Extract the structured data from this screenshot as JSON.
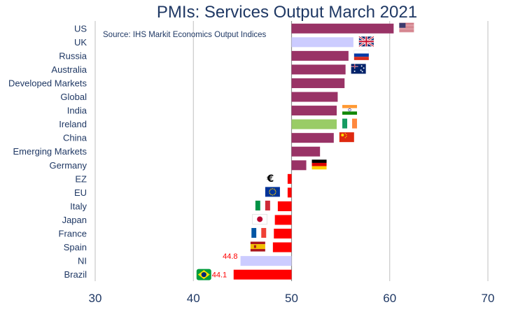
{
  "chart_data": {
    "type": "bar",
    "orientation": "horizontal",
    "title": "PMIs: Services Output March 2021",
    "source": "Source: IHS Markit Economics Output Indices",
    "xlabel": "",
    "ylabel": "",
    "xlim": [
      30,
      70
    ],
    "xticks": [
      "30",
      "40",
      "50",
      "60",
      "70"
    ],
    "baseline": 50,
    "grid": true,
    "legend": "none",
    "colors": {
      "default": "#993366",
      "uk_ni": "#ccccff",
      "ireland": "#99cc66",
      "below50": "#ff0000",
      "data_label": "#ff0000",
      "title": "#1f3864",
      "axis_text": "#1f3864",
      "grid": "#bfbfbf"
    },
    "categories": [
      "US",
      "UK",
      "Russia",
      "Australia",
      "Developed Markets",
      "Global",
      "India",
      "Ireland",
      "China",
      "Emerging Markets",
      "Germany",
      "EZ",
      "EU",
      "Italy",
      "Japan",
      "France",
      "Spain",
      "NI",
      "Brazil"
    ],
    "values": [
      60.4,
      56.3,
      55.8,
      55.5,
      55.4,
      54.7,
      54.6,
      54.6,
      54.3,
      52.9,
      51.5,
      49.6,
      49.6,
      48.6,
      48.3,
      48.2,
      48.1,
      44.8,
      44.1
    ],
    "bar_colors": [
      "#993366",
      "#ccccff",
      "#993366",
      "#993366",
      "#993366",
      "#993366",
      "#993366",
      "#99cc66",
      "#993366",
      "#993366",
      "#993366",
      "#ff0000",
      "#ff0000",
      "#ff0000",
      "#ff0000",
      "#ff0000",
      "#ff0000",
      "#ccccff",
      "#ff0000"
    ],
    "data_labels": [
      {
        "category": "NI",
        "text": "44.8"
      },
      {
        "category": "Brazil",
        "text": "44.1"
      }
    ],
    "flags": [
      {
        "category": "US",
        "icon": "us-flag-icon"
      },
      {
        "category": "UK",
        "icon": "uk-flag-icon"
      },
      {
        "category": "Russia",
        "icon": "russia-flag-icon"
      },
      {
        "category": "Australia",
        "icon": "australia-flag-icon"
      },
      {
        "category": "India",
        "icon": "india-flag-icon"
      },
      {
        "category": "Ireland",
        "icon": "ireland-flag-icon"
      },
      {
        "category": "China",
        "icon": "china-flag-icon"
      },
      {
        "category": "Germany",
        "icon": "germany-flag-icon"
      },
      {
        "category": "EZ",
        "icon": "euro-symbol-icon",
        "symbol": "€"
      },
      {
        "category": "EU",
        "icon": "eu-flag-icon"
      },
      {
        "category": "Italy",
        "icon": "italy-flag-icon"
      },
      {
        "category": "Japan",
        "icon": "japan-flag-icon"
      },
      {
        "category": "France",
        "icon": "france-flag-icon"
      },
      {
        "category": "Spain",
        "icon": "spain-flag-icon"
      },
      {
        "category": "Brazil",
        "icon": "brazil-flag-icon"
      }
    ]
  }
}
